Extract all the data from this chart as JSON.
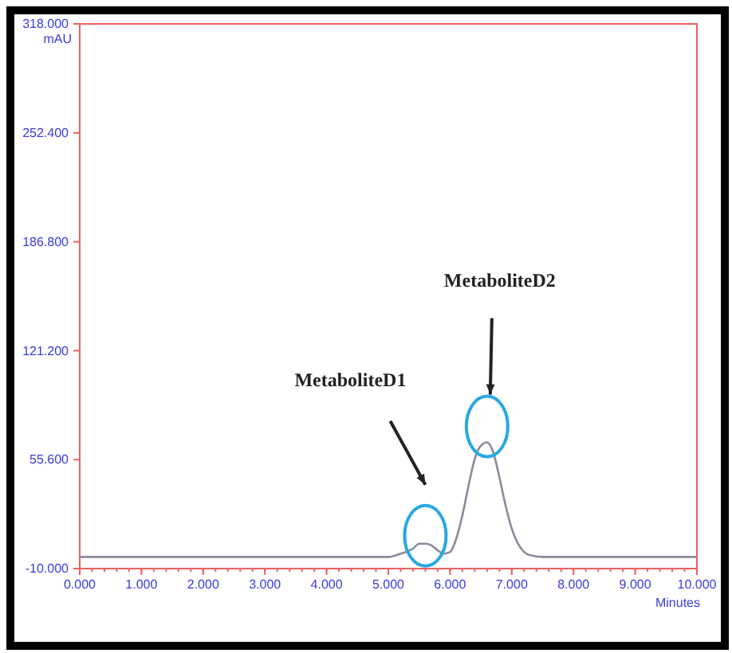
{
  "chart_data": {
    "type": "line",
    "xlabel": "Minutes",
    "ylabel": "mAU",
    "x": [
      0,
      1,
      2,
      3,
      4,
      4.5,
      5,
      5.2,
      5.4,
      5.5,
      5.6,
      5.7,
      5.8,
      5.9,
      6.0,
      6.1,
      6.2,
      6.3,
      6.4,
      6.5,
      6.6,
      6.7,
      6.8,
      6.9,
      7.0,
      7.1,
      7.2,
      7.3,
      7.5,
      8,
      9,
      10
    ],
    "series": [
      {
        "color": "#8a8a9a",
        "values": [
          -3,
          -3,
          -3,
          -3,
          -3,
          -3,
          -3,
          -1,
          2,
          5,
          5,
          4,
          1,
          -1,
          0,
          8,
          22,
          40,
          56,
          64,
          66,
          60,
          45,
          28,
          14,
          5,
          0,
          -2,
          -3,
          -3,
          -3,
          -3
        ]
      }
    ],
    "xlim": [
      0,
      10
    ],
    "xticks": [
      {
        "value": 0,
        "label": "0.000"
      },
      {
        "value": 1,
        "label": "1.000"
      },
      {
        "value": 2,
        "label": "2.000"
      },
      {
        "value": 3,
        "label": "3.000"
      },
      {
        "value": 4,
        "label": "4.000"
      },
      {
        "value": 5,
        "label": "5.000"
      },
      {
        "value": 6,
        "label": "6.000"
      },
      {
        "value": 7,
        "label": "7.000"
      },
      {
        "value": 8,
        "label": "8.000"
      },
      {
        "value": 9,
        "label": "9.000"
      },
      {
        "value": 10,
        "label": "10.000"
      }
    ],
    "ylim": [
      -10,
      318
    ],
    "yticks": [
      {
        "value": -10,
        "label": "-10.000"
      },
      {
        "value": 55.6,
        "label": "55.600"
      },
      {
        "value": 121.2,
        "label": "121.200"
      },
      {
        "value": 186.8,
        "label": "186.800"
      },
      {
        "value": 252.4,
        "label": "252.400"
      },
      {
        "value": 318,
        "label": "318.000"
      }
    ],
    "annotations": [
      "MetaboliteD1",
      "MetaboliteD2"
    ],
    "grid": false,
    "marker": "none",
    "line_style": "solid"
  }
}
